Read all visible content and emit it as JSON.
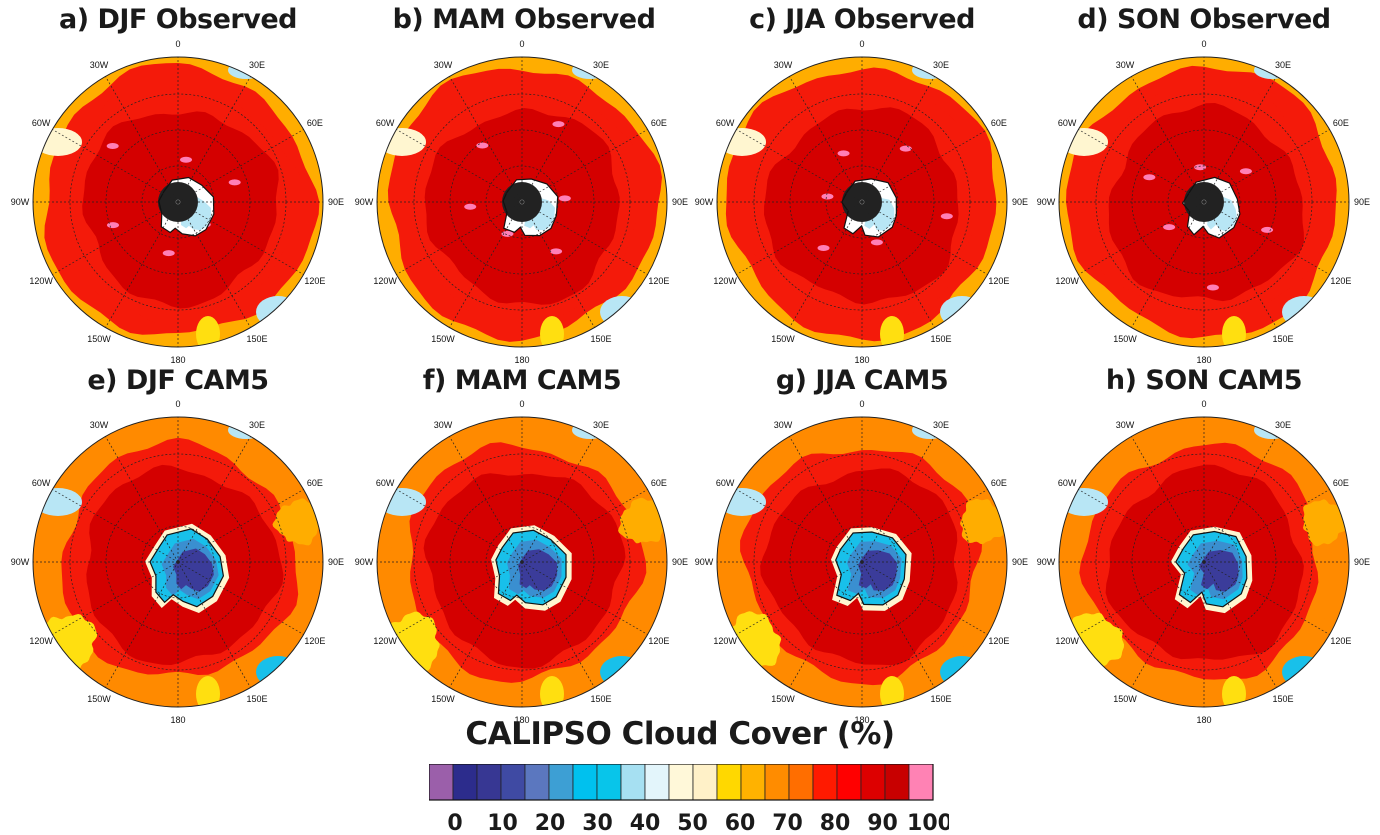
{
  "panels": [
    {
      "title": "a) DJF Observed",
      "type": "obs",
      "season": "DJF"
    },
    {
      "title": "b) MAM Observed",
      "type": "obs",
      "season": "MAM"
    },
    {
      "title": "c) JJA Observed",
      "type": "obs",
      "season": "JJA"
    },
    {
      "title": "d) SON Observed",
      "type": "obs",
      "season": "SON"
    },
    {
      "title": "e) DJF CAM5",
      "type": "model",
      "season": "DJF"
    },
    {
      "title": "f) MAM CAM5",
      "type": "model",
      "season": "MAM"
    },
    {
      "title": "g) JJA CAM5",
      "type": "model",
      "season": "JJA"
    },
    {
      "title": "h) SON CAM5",
      "type": "model",
      "season": "SON"
    }
  ],
  "longitude_labels": [
    "0",
    "30E",
    "60E",
    "90E",
    "120E",
    "150E",
    "180",
    "150W",
    "120W",
    "90W",
    "60W",
    "30W"
  ],
  "colorbar": {
    "title": "CALIPSO Cloud Cover (%)",
    "colors": [
      "#9b5faa",
      "#2c2c8c",
      "#373793",
      "#3f4aa3",
      "#5b77bf",
      "#3d9fd4",
      "#00c1ee",
      "#08c5ea",
      "#a6e0f2",
      "#e3f5fb",
      "#fff8d9",
      "#fff1c8",
      "#ffd800",
      "#ffb200",
      "#ff8c00",
      "#ff6e00",
      "#ff1a00",
      "#ff0000",
      "#dd0000",
      "#c80000",
      "#ff82b4"
    ],
    "tick_labels": [
      "0",
      "10",
      "20",
      "30",
      "40",
      "50",
      "60",
      "70",
      "80",
      "90",
      "100"
    ]
  },
  "map_colors": {
    "pink": "#ff7fb7",
    "darkred": "#d40000",
    "red": "#f41a0a",
    "orange": "#ff8a00",
    "lightorange": "#ffad00",
    "yellow": "#ffdf10",
    "cream": "#fff6d0",
    "lightblue": "#b8e6f5",
    "cyan": "#18c0ea",
    "midblue": "#3a8fd0",
    "darkblue": "#3b3c9a",
    "navy": "#2b2c80",
    "holefill": "#222222"
  }
}
